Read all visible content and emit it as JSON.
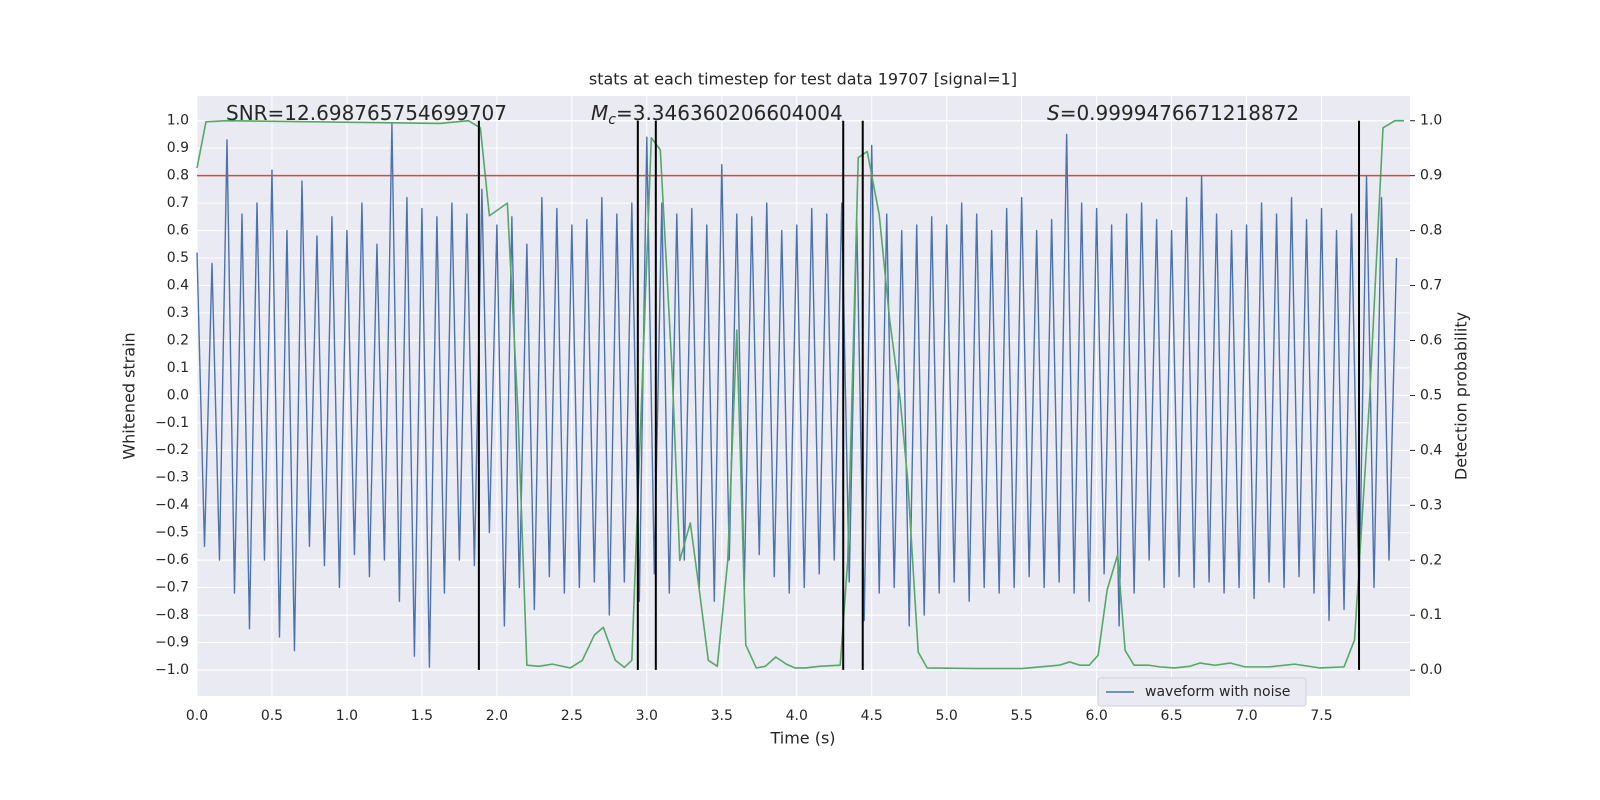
{
  "chart_data": {
    "type": "line",
    "title": "stats at each timestep for test data 19707 [signal=1]",
    "x_label": "Time (s)",
    "y_label": "Whitened strain",
    "y2_label": "Detection probability",
    "xlim": [
      0,
      8.09
    ],
    "ylim": [
      -1.095,
      1.09
    ],
    "y2lim": [
      -0.047,
      1.045
    ],
    "xticks": [
      {
        "value": 0,
        "label": "0.0"
      },
      0.5,
      {
        "value": 1,
        "label": "1.0"
      },
      1.5,
      {
        "value": 2,
        "label": "2.0"
      },
      2.5,
      {
        "value": 3,
        "label": "3.0"
      },
      3.5,
      {
        "value": 4,
        "label": "4.0"
      },
      4.5,
      {
        "value": 5,
        "label": "5.0"
      },
      5.5,
      {
        "value": 6,
        "label": "6.0"
      },
      6.5,
      {
        "value": 7,
        "label": "7.0"
      },
      7.5
    ],
    "yticks": [
      {
        "value": -1,
        "label": "−1.0"
      },
      {
        "value": -0.9,
        "label": "−0.9"
      },
      {
        "value": -0.8,
        "label": "−0.8"
      },
      {
        "value": -0.7,
        "label": "−0.7"
      },
      {
        "value": -0.6,
        "label": "−0.6"
      },
      {
        "value": -0.5,
        "label": "−0.5"
      },
      {
        "value": -0.4,
        "label": "−0.4"
      },
      {
        "value": -0.3,
        "label": "−0.3"
      },
      {
        "value": -0.2,
        "label": "−0.2"
      },
      {
        "value": -0.1,
        "label": "−0.1"
      },
      {
        "value": 0,
        "label": "0.0"
      },
      0.1,
      0.2,
      0.3,
      0.4,
      0.5,
      0.6,
      0.7,
      0.8,
      0.9,
      {
        "value": 1,
        "label": "1.0"
      }
    ],
    "y2ticks": [
      {
        "value": 0,
        "label": "0.0"
      },
      0.1,
      0.2,
      0.3,
      0.4,
      0.5,
      0.6,
      0.7,
      0.8,
      0.9,
      {
        "value": 1,
        "label": "1.0"
      }
    ],
    "grid": true,
    "legend": "lower right",
    "series": [
      {
        "name": "waveform with noise",
        "color": "#4c72b0",
        "x": [
          0,
          0.05,
          0.1,
          0.15,
          0.2,
          0.25,
          0.3,
          0.35,
          0.4,
          0.45,
          0.5,
          0.55,
          0.6,
          0.65,
          0.7,
          0.75,
          0.8,
          0.85,
          0.9,
          0.95,
          1,
          1.05,
          1.1,
          1.15,
          1.2,
          1.25,
          1.3,
          1.35,
          1.4,
          1.45,
          1.5,
          1.55,
          1.6,
          1.65,
          1.7,
          1.75,
          1.8,
          1.85,
          1.9,
          1.95,
          2,
          2.05,
          2.1,
          2.15,
          2.2,
          2.25,
          2.3,
          2.35,
          2.4,
          2.45,
          2.5,
          2.55,
          2.6,
          2.65,
          2.7,
          2.75,
          2.8,
          2.85,
          2.9,
          2.95,
          3,
          3.05,
          3.1,
          3.15,
          3.2,
          3.25,
          3.3,
          3.35,
          3.4,
          3.45,
          3.5,
          3.55,
          3.6,
          3.65,
          3.7,
          3.75,
          3.8,
          3.85,
          3.9,
          3.95,
          4,
          4.05,
          4.1,
          4.15,
          4.2,
          4.25,
          4.3,
          4.35,
          4.4,
          4.45,
          4.5,
          4.55,
          4.6,
          4.65,
          4.7,
          4.75,
          4.8,
          4.85,
          4.9,
          4.95,
          5,
          5.05,
          5.1,
          5.15,
          5.2,
          5.25,
          5.3,
          5.35,
          5.4,
          5.45,
          5.5,
          5.55,
          5.6,
          5.65,
          5.7,
          5.75,
          5.8,
          5.85,
          5.9,
          5.95,
          6,
          6.05,
          6.1,
          6.15,
          6.2,
          6.25,
          6.3,
          6.35,
          6.4,
          6.45,
          6.5,
          6.55,
          6.6,
          6.65,
          6.7,
          6.75,
          6.8,
          6.85,
          6.9,
          6.95,
          7,
          7.05,
          7.1,
          7.15,
          7.2,
          7.25,
          7.3,
          7.35,
          7.4,
          7.45,
          7.5,
          7.55,
          7.6,
          7.65,
          7.7,
          7.75,
          7.8,
          7.85,
          7.9,
          7.95,
          8
        ],
        "values": [
          0.52,
          -0.55,
          0.48,
          -0.6,
          0.93,
          -0.72,
          0.66,
          -0.85,
          0.7,
          -0.6,
          0.82,
          -0.88,
          0.6,
          -0.93,
          0.78,
          -0.55,
          0.58,
          -0.62,
          0.65,
          -0.7,
          0.6,
          -0.58,
          0.7,
          -0.66,
          0.55,
          -0.6,
          0.99,
          -0.75,
          0.72,
          -0.95,
          0.68,
          -0.99,
          0.65,
          -0.72,
          0.7,
          -0.6,
          0.66,
          -0.62,
          0.75,
          -0.5,
          0.62,
          -0.84,
          0.65,
          -0.7,
          0.55,
          -0.78,
          0.72,
          -0.66,
          0.68,
          -0.72,
          0.62,
          -0.7,
          0.64,
          -0.68,
          0.72,
          -0.8,
          0.66,
          -0.68,
          0.7,
          -0.75,
          0.94,
          -0.65,
          0.7,
          -0.72,
          0.66,
          -0.6,
          0.68,
          -0.7,
          0.62,
          -0.75,
          0.84,
          -0.6,
          0.66,
          -0.7,
          0.65,
          -0.58,
          0.7,
          -0.66,
          0.6,
          -0.72,
          0.62,
          -0.7,
          0.68,
          -0.65,
          0.66,
          -0.6,
          0.7,
          -0.68,
          0.64,
          -0.82,
          0.91,
          -0.72,
          0.66,
          -0.7,
          0.6,
          -0.84,
          0.62,
          -0.8,
          0.65,
          -0.72,
          0.62,
          -0.68,
          0.7,
          -0.75,
          0.66,
          -0.7,
          0.6,
          -0.72,
          0.68,
          -0.7,
          0.72,
          -0.66,
          0.6,
          -0.7,
          0.64,
          -0.68,
          0.95,
          -0.72,
          0.7,
          -0.75,
          0.68,
          -0.65,
          0.62,
          -0.84,
          0.66,
          -0.72,
          0.7,
          -0.6,
          0.64,
          -0.7,
          0.6,
          -0.66,
          0.72,
          -0.7,
          0.8,
          -0.68,
          0.66,
          -0.72,
          0.6,
          -0.7,
          0.62,
          -0.74,
          0.7,
          -0.68,
          0.66,
          -0.7,
          0.72,
          -0.66,
          0.64,
          -0.72,
          0.68,
          -0.82,
          0.6,
          -0.78,
          0.66,
          -0.75,
          0.8,
          -0.7,
          0.72,
          -0.6,
          0.5
        ]
      },
      {
        "color": "#55a868",
        "axis": "y2",
        "x": [
          0,
          0.06,
          0.2,
          1.62,
          1.81,
          1.89,
          1.95,
          2.07,
          2.14,
          2.2,
          2.28,
          2.37,
          2.49,
          2.57,
          2.65,
          2.71,
          2.79,
          2.85,
          2.9,
          2.97,
          3.03,
          3.09,
          3.17,
          3.22,
          3.29,
          3.35,
          3.41,
          3.47,
          3.54,
          3.6,
          3.66,
          3.73,
          3.79,
          3.86,
          3.93,
          3.99,
          4.06,
          4.15,
          4.29,
          4.34,
          4.41,
          4.47,
          4.55,
          4.62,
          4.69,
          4.74,
          4.81,
          4.87,
          5.2,
          5.5,
          5.75,
          5.82,
          5.89,
          5.95,
          6.01,
          6.07,
          6.14,
          6.19,
          6.25,
          6.35,
          6.42,
          6.52,
          6.62,
          6.69,
          6.79,
          6.89,
          6.99,
          7.15,
          7.32,
          7.49,
          7.65,
          7.72,
          7.82,
          7.91,
          7.99,
          8.05
        ],
        "values": [
          0.914,
          0.998,
          1,
          0.995,
          1,
          0.987,
          0.827,
          0.85,
          0.474,
          0.009,
          0.007,
          0.011,
          0.004,
          0.018,
          0.064,
          0.078,
          0.018,
          0.005,
          0.018,
          0.528,
          0.969,
          0.947,
          0.537,
          0.2,
          0.268,
          0.146,
          0.018,
          0.007,
          0.2,
          0.619,
          0.046,
          0.004,
          0.007,
          0.024,
          0.011,
          0.004,
          0.004,
          0.007,
          0.009,
          0.2,
          0.933,
          0.944,
          0.829,
          0.637,
          0.492,
          0.346,
          0.033,
          0.004,
          0.003,
          0.003,
          0.009,
          0.015,
          0.009,
          0.009,
          0.027,
          0.146,
          0.21,
          0.036,
          0.009,
          0.009,
          0.006,
          0.004,
          0.007,
          0.013,
          0.009,
          0.013,
          0.006,
          0.006,
          0.011,
          0.004,
          0.006,
          0.055,
          0.492,
          0.987,
          1,
          1
        ]
      }
    ],
    "threshold": {
      "value": 0.8,
      "color": "#c44e52"
    },
    "vlines": {
      "x": [
        1.88,
        2.94,
        3.06,
        4.31,
        4.44,
        7.75
      ],
      "ymin": -1,
      "ymax": 1,
      "color": "#000000"
    },
    "annotations": [
      {
        "text": "SNR=12.698765754699707"
      },
      {
        "symbol": "M",
        "subscript": "c",
        "text": "=3.346360206604004"
      },
      {
        "symbol": "S",
        "text": "=0.9999476671218872"
      }
    ]
  }
}
